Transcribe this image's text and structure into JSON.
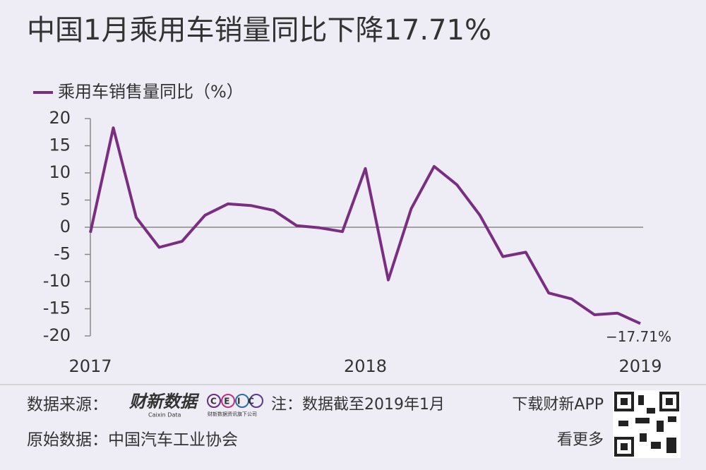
{
  "chart_data": {
    "type": "line",
    "title": "中国1月乘用车销量同比下降17.71%",
    "categories": [
      "2017",
      null,
      null,
      null,
      null,
      null,
      null,
      null,
      null,
      null,
      null,
      null,
      "2018",
      null,
      null,
      null,
      null,
      null,
      null,
      null,
      null,
      null,
      null,
      null,
      "2019"
    ],
    "series": [
      {
        "name": "乘用车销售量同比（%）",
        "color": "#7a2e82",
        "values": [
          -1,
          18.3,
          1.8,
          -3.7,
          -2.6,
          2.2,
          4.3,
          4.0,
          3.1,
          0.3,
          -0.1,
          -0.8,
          10.8,
          -9.7,
          3.4,
          11.2,
          7.8,
          2.2,
          -5.4,
          -4.6,
          -12.1,
          -13.2,
          -16.1,
          -15.8,
          -17.71
        ],
        "value_labels": [
          null,
          null,
          null,
          null,
          null,
          null,
          null,
          null,
          null,
          null,
          null,
          null,
          null,
          null,
          null,
          null,
          null,
          null,
          null,
          null,
          null,
          null,
          null,
          null,
          "−17.71%"
        ]
      }
    ],
    "ylim": [
      -20,
      20
    ],
    "yticks": [
      -20,
      -15,
      -10,
      -5,
      0,
      5,
      10,
      15,
      20
    ],
    "grid": false,
    "legend": "top-left"
  },
  "footer": {
    "source_label": "数据来源：",
    "logo_caixin": "财新数据",
    "logo_caixin_en": "Caixin Data",
    "logo_ceic": "CEIC",
    "logo_ceic_sub": "财新数据资讯旗下公司",
    "note": "注：数据截至2019年1月",
    "app": "下载财新APP",
    "origin": "原始数据：中国汽车工业协会",
    "more": "看更多"
  }
}
